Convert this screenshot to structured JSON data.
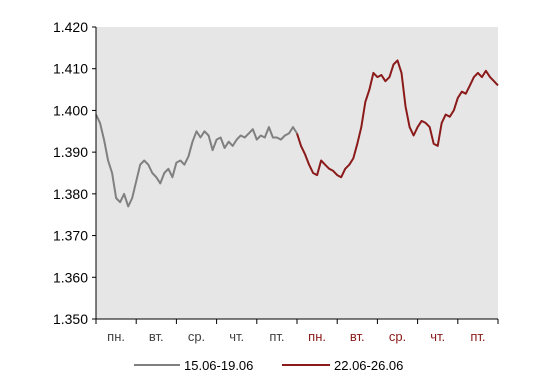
{
  "chart_data": {
    "type": "line",
    "title": "",
    "xlabel": "",
    "ylabel": "",
    "ylim": [
      1.35,
      1.42
    ],
    "yticks": [
      "1.350",
      "1.360",
      "1.370",
      "1.380",
      "1.390",
      "1.400",
      "1.410",
      "1.420"
    ],
    "categories": [
      "пн.",
      "вт.",
      "ср.",
      "чт.",
      "пт.",
      "пн.",
      "вт.",
      "ср.",
      "чт.",
      "пт."
    ],
    "grid": false,
    "legend_position": "bottom",
    "background_color": "#e6e6e6",
    "category_label_colors": [
      "#404040",
      "#404040",
      "#404040",
      "#404040",
      "#404040",
      "#8b1a1a",
      "#8b1a1a",
      "#8b1a1a",
      "#8b1a1a",
      "#8b1a1a"
    ],
    "series": [
      {
        "name": "15.06-19.06",
        "color": "#808080",
        "x": [
          0.0,
          0.1,
          0.2,
          0.3,
          0.4,
          0.5,
          0.6,
          0.7,
          0.8,
          0.9,
          1.0,
          1.1,
          1.2,
          1.3,
          1.4,
          1.5,
          1.6,
          1.7,
          1.8,
          1.9,
          2.0,
          2.1,
          2.2,
          2.3,
          2.4,
          2.5,
          2.6,
          2.7,
          2.8,
          2.9,
          3.0,
          3.1,
          3.2,
          3.3,
          3.4,
          3.5,
          3.6,
          3.7,
          3.8,
          3.9,
          4.0,
          4.1,
          4.2,
          4.3,
          4.4,
          4.5,
          4.6,
          4.7,
          4.8,
          4.9,
          5.0
        ],
        "y": [
          1.399,
          1.397,
          1.393,
          1.388,
          1.385,
          1.379,
          1.378,
          1.38,
          1.377,
          1.379,
          1.383,
          1.387,
          1.388,
          1.387,
          1.385,
          1.384,
          1.3825,
          1.385,
          1.386,
          1.384,
          1.3875,
          1.388,
          1.387,
          1.389,
          1.3925,
          1.395,
          1.3935,
          1.395,
          1.394,
          1.3905,
          1.393,
          1.3935,
          1.391,
          1.3925,
          1.3915,
          1.393,
          1.394,
          1.3935,
          1.3945,
          1.3955,
          1.393,
          1.394,
          1.3935,
          1.396,
          1.3935,
          1.3935,
          1.393,
          1.394,
          1.3945,
          1.396,
          1.3945
        ]
      },
      {
        "name": "22.06-26.06",
        "color": "#8b1a1a",
        "x": [
          5.0,
          5.1,
          5.2,
          5.3,
          5.4,
          5.5,
          5.6,
          5.7,
          5.8,
          5.9,
          6.0,
          6.1,
          6.2,
          6.3,
          6.4,
          6.5,
          6.6,
          6.7,
          6.8,
          6.9,
          7.0,
          7.1,
          7.2,
          7.3,
          7.4,
          7.5,
          7.6,
          7.7,
          7.8,
          7.9,
          8.0,
          8.1,
          8.2,
          8.3,
          8.4,
          8.5,
          8.6,
          8.7,
          8.8,
          8.9,
          9.0,
          9.1,
          9.2,
          9.3,
          9.4,
          9.5,
          9.6,
          9.7,
          9.8,
          9.9,
          10.0
        ],
        "y": [
          1.3945,
          1.3915,
          1.3895,
          1.387,
          1.385,
          1.3845,
          1.388,
          1.387,
          1.386,
          1.3855,
          1.3845,
          1.384,
          1.386,
          1.387,
          1.3885,
          1.392,
          1.396,
          1.402,
          1.405,
          1.409,
          1.408,
          1.4085,
          1.407,
          1.408,
          1.411,
          1.412,
          1.409,
          1.401,
          1.396,
          1.394,
          1.396,
          1.3975,
          1.397,
          1.396,
          1.392,
          1.3915,
          1.397,
          1.399,
          1.3985,
          1.4,
          1.403,
          1.4045,
          1.404,
          1.406,
          1.408,
          1.409,
          1.408,
          1.4095,
          1.408,
          1.407,
          1.406
        ]
      }
    ]
  }
}
